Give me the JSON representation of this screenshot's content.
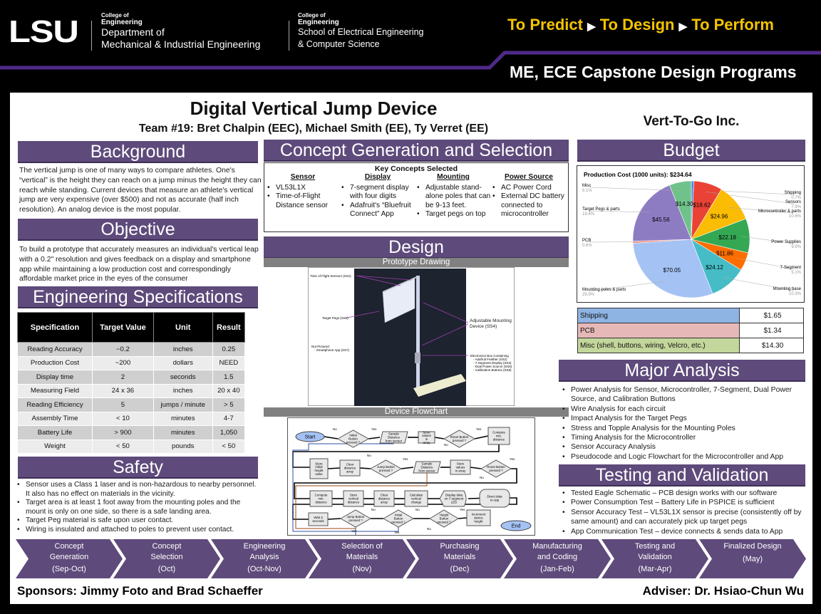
{
  "header": {
    "logo": "LSU",
    "college_small": "College of",
    "college": "Engineering",
    "dept1_line1": "Department of",
    "dept1_line2": "Mechanical & Industrial Engineering",
    "school_small": "College of",
    "school_college": "Engineering",
    "dept2_line1": "School of Electrical Engineering",
    "dept2_line2": "& Computer Science",
    "tagline": [
      "To Predict",
      "To Design",
      "To Perform"
    ],
    "program": "ME, ECE Capstone Design Programs",
    "colors": {
      "purple": "#4f2a8a",
      "gold": "#f5c400"
    }
  },
  "title": "Digital Vertical Jump Device",
  "team": "Team #19: Bret Chalpin (EEC), Michael Smith (EE), Ty Verret (EE)",
  "company": "Vert-To-Go Inc.",
  "background": {
    "heading": "Background",
    "text": "The vertical jump is one of many ways to compare athletes. One's “vertical” is the height they can reach on a jump minus the height they can reach while standing. Current devices that measure an athlete's vertical jump are very expensive (over $500) and not as accurate (half inch resolution). An analog device is the most popular."
  },
  "objective": {
    "heading": "Objective",
    "text": "To build a prototype that accurately measures an individual's vertical leap with a 0.2\" resolution and gives feedback on a display and smartphone app while maintaining a low production cost and correspondingly affordable market price in the eyes of the consumer"
  },
  "specs": {
    "heading": "Engineering Specifications",
    "columns": [
      "Specification",
      "Target Value",
      "Unit",
      "Result"
    ],
    "rows": [
      [
        "Reading Accuracy",
        "~0.2",
        "inches",
        "0.25"
      ],
      [
        "Production Cost",
        "~200",
        "dollars",
        "NEED"
      ],
      [
        "Display time",
        "2",
        "seconds",
        "1.5"
      ],
      [
        "Measuring Field",
        "24 x 36",
        "inches",
        "20 x 40"
      ],
      [
        "Reading Efficiency",
        "5",
        "jumps / minute",
        "> 5"
      ],
      [
        "Assembly Time",
        "< 10",
        "minutes",
        "4-7"
      ],
      [
        "Battery Life",
        "> 900",
        "minutes",
        "1,050"
      ],
      [
        "Weight",
        "< 50",
        "pounds",
        "< 50"
      ]
    ]
  },
  "safety": {
    "heading": "Safety",
    "items": [
      "Sensor uses a Class 1 laser and is non-hazardous to nearby personnel. It also has no effect on materials in the vicinity.",
      "Target area is at least 1 foot away from the mounting poles and the mount is only on one side, so there is a safe landing area.",
      "Target Peg material is safe upon user contact.",
      "Wiring is insulated and attached to poles to prevent user contact."
    ]
  },
  "concept": {
    "heading": "Concept Generation and Selection",
    "subheading": "Key Concepts Selected",
    "columns": [
      {
        "title": "Sensor",
        "items": [
          "VL53L1X",
          "Time-of-Flight Distance sensor"
        ]
      },
      {
        "title": "Display",
        "items": [
          "7-segment display with four digits",
          "Adafruit's “Bluefruit Connect” App"
        ]
      },
      {
        "title": "Mounting",
        "items": [
          "Adjustable stand-alone poles that can be 9-13 feet.",
          "Target pegs on top"
        ]
      },
      {
        "title": "Power Source",
        "items": [
          "AC Power Cord",
          "External DC battery connected to microcontroller"
        ]
      }
    ]
  },
  "design": {
    "heading": "Design",
    "drawing_label": "Prototype Drawing",
    "drawing_callouts": {
      "tof": "Time of Flight Sensors (SS1)",
      "pegs": "Target Pegs (SS6)",
      "notpictured": "Not Pictured",
      "app": "- Smartphone App (SS7)",
      "mount": "Adjustable Mounting Device (SS4)",
      "box": "Electronics Box Containing",
      "box_items": [
        "- Adafruit Feather (SS2)",
        "- 7-Segment Display (SS3)",
        "- Dual Power Source (SS5)",
        "- Calibration Buttons (SS8)"
      ]
    },
    "flowchart_label": "Device Flowchart",
    "flowchart_nodes": [
      "Start",
      "Initial Button pressed ?",
      "Sample Distance from sensor",
      "Store values in array",
      "Reset Button pressed ?",
      "Compute min. distance",
      "Store initial height value",
      "Clear distance array",
      "Jump Button pressed ?",
      "Sample Distance from sensor",
      "Store values in array",
      "Reset Button pressed ?",
      "Compute min. distance",
      "Store vertical distance",
      "Clear distance array",
      "Calculate vertical change",
      "Display data on 7-segment LED",
      "Direct data to App",
      "Wait 3 seconds",
      "Jump Button pressed ?",
      "Initial Button pressed ?",
      "Height Button pressed ?",
      "Increment device height",
      "End"
    ],
    "flowchart_edge_labels": {
      "yes": "Yes",
      "no": "No"
    }
  },
  "budget": {
    "heading": "Budget",
    "chart_title": "Production Cost (1000 units): $234.64",
    "chart_data": {
      "type": "pie",
      "title": "Production Cost (1000 units): $234.64",
      "slices": [
        {
          "label": "Shipping",
          "value": 1.65,
          "percent": "0.7%",
          "color": "#4285f4"
        },
        {
          "label": "Sensors",
          "value": 18.62,
          "percent": "7.9%",
          "color": "#ea4335"
        },
        {
          "label": "Microcontroller & parts",
          "value": 24.96,
          "percent": "10.6%",
          "color": "#fbbc04"
        },
        {
          "label": "Power Supplies",
          "value": 22.18,
          "percent": "9.5%",
          "color": "#34a853"
        },
        {
          "label": "7-Segment",
          "value": 11.86,
          "percent": "5.1%",
          "color": "#ff6d01"
        },
        {
          "label": "Mounting base",
          "value": 24.12,
          "percent": "10.3%",
          "color": "#46bdc6"
        },
        {
          "label": "Mounting poles & parts",
          "value": 70.05,
          "percent": "29.9%",
          "color": "#a4c2f4"
        },
        {
          "label": "PCB",
          "value": 1.34,
          "percent": "0.6%",
          "color": "#f28b82"
        },
        {
          "label": "Target Pegs & parts",
          "value": 45.56,
          "percent": "19.4%",
          "color": "#8e7cc3"
        },
        {
          "label": "Misc",
          "value": 14.3,
          "percent": "6.1%",
          "color": "#6fc38a"
        }
      ]
    },
    "table": [
      {
        "label": "Shipping",
        "value": "$1.65",
        "color": "#8eb4e3"
      },
      {
        "label": "PCB",
        "value": "$1.34",
        "color": "#e6b9b8"
      },
      {
        "label": "Misc (shell, buttons, wiring, Velcro, etc.)",
        "value": "$14.30",
        "color": "#c3d69b"
      }
    ]
  },
  "analysis": {
    "heading": "Major Analysis",
    "items": [
      "Power Analysis for Sensor, Microcontroller, 7-Segment, Dual Power Source, and Calibration Buttons",
      "Wire Analysis for each circuit",
      "Impact Analysis for the Target Pegs",
      "Stress and Topple Analysis for the Mounting Poles",
      "Timing Analysis for the Microcontroller",
      "Sensor Accuracy Analysis",
      "Pseudocode and Logic Flowchart for the Microcontroller and App"
    ]
  },
  "testing": {
    "heading": "Testing and Validation",
    "items": [
      "Tested Eagle Schematic – PCB design works with our software",
      "Power Consumption Test – Battery Life in PSPICE is sufficient",
      "Sensor Accuracy Test – VL53L1X sensor is precise (consistently off by same amount) and can accurately pick up target pegs",
      "App Communication Test – device connects & sends data to App"
    ]
  },
  "timeline": [
    {
      "l1": "Concept",
      "l2": "Generation",
      "d": "(Sep-Oct)"
    },
    {
      "l1": "Concept",
      "l2": "Selection",
      "d": "(Oct)"
    },
    {
      "l1": "Engineering",
      "l2": "Analysis",
      "d": "(Oct-Nov)"
    },
    {
      "l1": "Selection of",
      "l2": "Materials",
      "d": "(Nov)"
    },
    {
      "l1": "Purchasing",
      "l2": "Materials",
      "d": "(Dec)"
    },
    {
      "l1": "Manufacturing",
      "l2": "and Coding",
      "d": "(Jan-Feb)"
    },
    {
      "l1": "Testing and",
      "l2": "Validation",
      "d": "(Mar-Apr)"
    },
    {
      "l1": "Finalized Design",
      "l2": "",
      "d": "(May)"
    }
  ],
  "sponsors": "Sponsors: Jimmy Foto and Brad Schaeffer",
  "adviser": "Adviser: Dr. Hsiao-Chun Wu"
}
